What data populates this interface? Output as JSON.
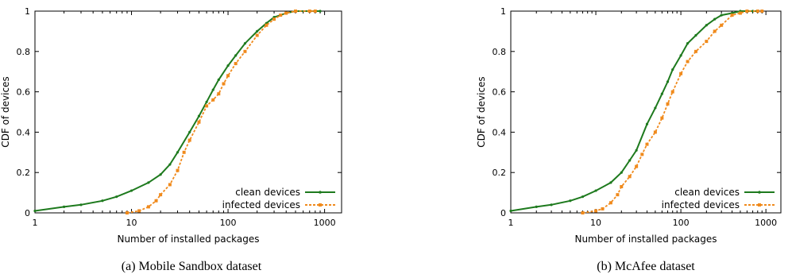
{
  "colors": {
    "clean": "#1e7a1e",
    "infected": "#f08a1c"
  },
  "chart_data": [
    {
      "type": "line",
      "caption": "(a) Mobile Sandbox dataset",
      "xlabel": "Number of installed packages",
      "ylabel": "CDF of devices",
      "xscale": "log",
      "xlim": [
        1,
        1500
      ],
      "ylim": [
        0,
        1
      ],
      "x_ticks": [
        "1",
        "10",
        "100",
        "1000"
      ],
      "y_ticks": [
        "0",
        "0.2",
        "0.4",
        "0.6",
        "0.8",
        "1"
      ],
      "legend_position": "bottom-right",
      "series": [
        {
          "name": "clean devices",
          "color_key": "clean",
          "x": [
            1,
            2,
            3,
            5,
            7,
            10,
            15,
            20,
            25,
            30,
            40,
            50,
            60,
            70,
            80,
            100,
            120,
            150,
            200,
            250,
            300,
            350,
            400,
            500,
            700,
            900
          ],
          "y": [
            0.01,
            0.03,
            0.04,
            0.06,
            0.08,
            0.11,
            0.15,
            0.19,
            0.24,
            0.3,
            0.4,
            0.48,
            0.55,
            0.61,
            0.66,
            0.73,
            0.78,
            0.84,
            0.9,
            0.94,
            0.97,
            0.98,
            0.99,
            1.0,
            1.0,
            1.0
          ]
        },
        {
          "name": "infected devices",
          "color_key": "infected",
          "x": [
            9,
            12,
            15,
            18,
            20,
            25,
            30,
            35,
            40,
            50,
            60,
            70,
            80,
            90,
            100,
            120,
            150,
            200,
            250,
            300,
            350,
            400,
            500,
            700,
            800
          ],
          "y": [
            0.0,
            0.01,
            0.03,
            0.06,
            0.09,
            0.14,
            0.21,
            0.3,
            0.36,
            0.45,
            0.53,
            0.56,
            0.59,
            0.64,
            0.68,
            0.74,
            0.8,
            0.88,
            0.93,
            0.96,
            0.98,
            0.99,
            1.0,
            1.0,
            1.0
          ]
        }
      ]
    },
    {
      "type": "line",
      "caption": "(b) McAfee dataset",
      "xlabel": "Number of installed packages",
      "ylabel": "CDF of devices",
      "xscale": "log",
      "xlim": [
        1,
        1500
      ],
      "ylim": [
        0,
        1
      ],
      "x_ticks": [
        "1",
        "10",
        "100",
        "1000"
      ],
      "y_ticks": [
        "0",
        "0.2",
        "0.4",
        "0.6",
        "0.8",
        "1"
      ],
      "legend_position": "bottom-right",
      "series": [
        {
          "name": "clean devices",
          "color_key": "clean",
          "x": [
            1,
            2,
            3,
            5,
            7,
            10,
            15,
            20,
            25,
            30,
            40,
            50,
            60,
            70,
            80,
            100,
            120,
            150,
            200,
            250,
            300,
            400,
            500,
            700,
            800
          ],
          "y": [
            0.01,
            0.03,
            0.04,
            0.06,
            0.08,
            0.11,
            0.15,
            0.2,
            0.26,
            0.31,
            0.44,
            0.52,
            0.59,
            0.65,
            0.71,
            0.78,
            0.84,
            0.88,
            0.93,
            0.96,
            0.98,
            0.99,
            1.0,
            1.0,
            1.0
          ]
        },
        {
          "name": "infected devices",
          "color_key": "infected",
          "x": [
            7,
            10,
            12,
            15,
            18,
            20,
            25,
            30,
            35,
            40,
            50,
            60,
            70,
            80,
            100,
            120,
            150,
            200,
            250,
            300,
            400,
            500,
            600,
            800,
            900
          ],
          "y": [
            0.0,
            0.01,
            0.02,
            0.05,
            0.09,
            0.13,
            0.18,
            0.23,
            0.29,
            0.34,
            0.4,
            0.47,
            0.54,
            0.6,
            0.69,
            0.75,
            0.8,
            0.85,
            0.9,
            0.93,
            0.98,
            0.99,
            1.0,
            1.0,
            1.0
          ]
        }
      ]
    }
  ]
}
